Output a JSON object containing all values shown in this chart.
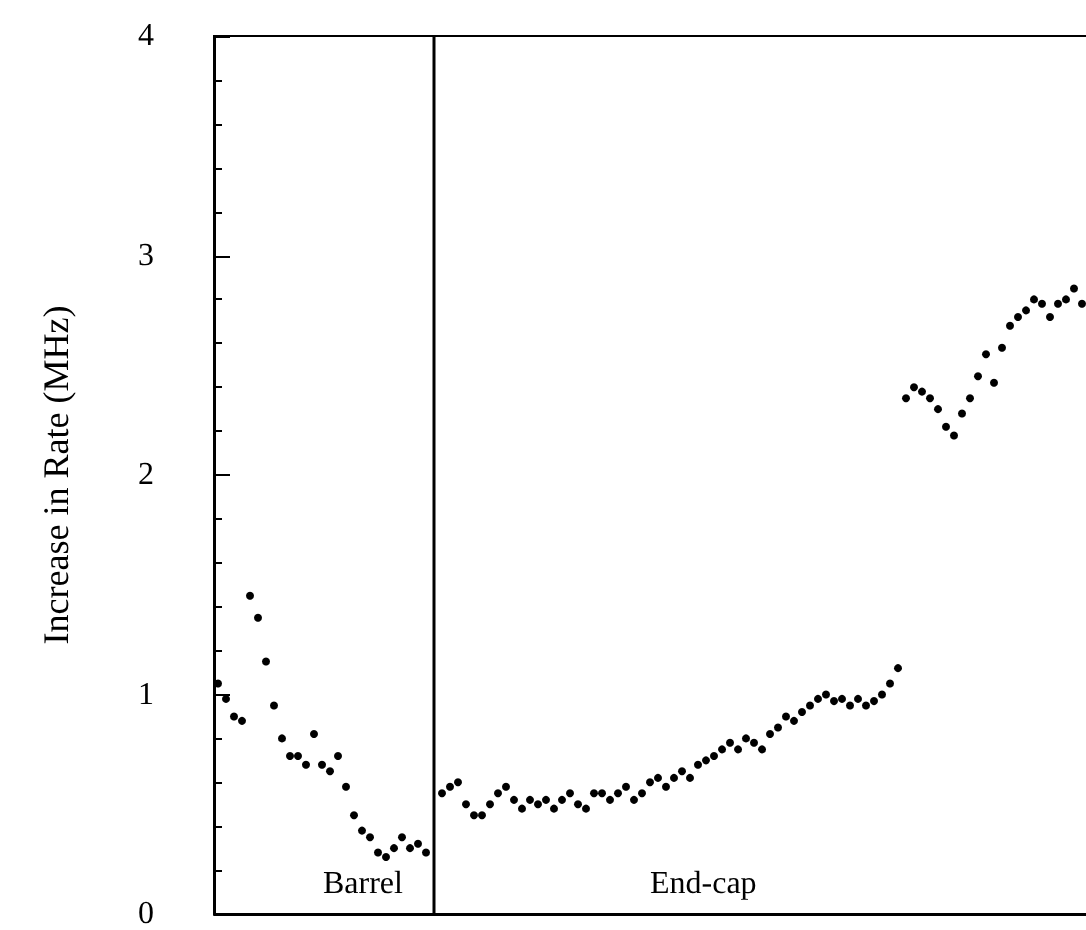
{
  "chart_data": {
    "type": "scatter",
    "ylabel": "Increase in Rate (MHz)",
    "annotations": [
      "Barrel",
      "End-cap"
    ],
    "categories": [
      null,
      null,
      null,
      null,
      null,
      null,
      null,
      null,
      null,
      null,
      null,
      null,
      null,
      null,
      null,
      null,
      null,
      null,
      null,
      null,
      null,
      null,
      null,
      null,
      null,
      null,
      null,
      null,
      null,
      null,
      null,
      null,
      null,
      null,
      null,
      null,
      null,
      null,
      null,
      null,
      null,
      null,
      null,
      null,
      null,
      null,
      null,
      null,
      null,
      null,
      null,
      null,
      null,
      null,
      null,
      null,
      null,
      null,
      null,
      null,
      null,
      null,
      null,
      null,
      null,
      null,
      null,
      null,
      null,
      null,
      null,
      null,
      null,
      null,
      null,
      null,
      null,
      null,
      null,
      null,
      null,
      null,
      null,
      null,
      null,
      null,
      null,
      null,
      null,
      null,
      null,
      null,
      null,
      null,
      null,
      null,
      null,
      null,
      null,
      null,
      null,
      null,
      null,
      null,
      null,
      null,
      null,
      null,
      null
    ],
    "series": [
      {
        "color": "#000000",
        "values": [
          1.05,
          0.98,
          0.9,
          0.88,
          1.45,
          1.35,
          1.15,
          0.95,
          0.8,
          0.72,
          0.72,
          0.68,
          0.82,
          0.68,
          0.65,
          0.72,
          0.58,
          0.45,
          0.38,
          0.35,
          0.28,
          0.26,
          0.3,
          0.35,
          0.3,
          0.32,
          0.28,
          null,
          0.55,
          0.58,
          0.6,
          0.5,
          0.45,
          0.45,
          0.5,
          0.55,
          0.58,
          0.52,
          0.48,
          0.52,
          0.5,
          0.52,
          0.48,
          0.52,
          0.55,
          0.5,
          0.48,
          0.55,
          0.55,
          0.52,
          0.55,
          0.58,
          0.52,
          0.55,
          0.6,
          0.62,
          0.58,
          0.62,
          0.65,
          0.62,
          0.68,
          0.7,
          0.72,
          0.75,
          0.78,
          0.75,
          0.8,
          0.78,
          0.75,
          0.82,
          0.85,
          0.9,
          0.88,
          0.92,
          0.95,
          0.98,
          1.0,
          0.97,
          0.98,
          0.95,
          0.98,
          0.95,
          0.97,
          1.0,
          1.05,
          1.12,
          2.35,
          2.4,
          2.38,
          2.35,
          2.3,
          2.22,
          2.18,
          2.28,
          2.35,
          2.45,
          2.55,
          2.42,
          2.58,
          2.68,
          2.72,
          2.75,
          2.8,
          2.78,
          2.72,
          2.78,
          2.8,
          2.85,
          2.78
        ]
      }
    ],
    "ylim": [
      0,
      4
    ],
    "yticks": [
      0,
      1,
      2,
      3,
      4
    ],
    "tick_labels": "y",
    "grid": false,
    "marker": "circle"
  }
}
